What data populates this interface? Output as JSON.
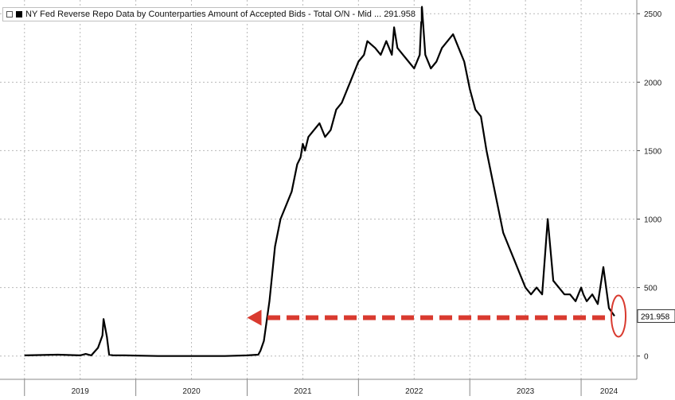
{
  "legend": {
    "label": "NY Fed Reverse Repo Data by Counterparties Amount of Accepted Bids - Total O/N - Mid ... 291.958"
  },
  "last_value_tag": "291.958",
  "colors": {
    "line": "#000000",
    "grid": "#b9b9b9",
    "annotation": "#d93a2f",
    "tag_bg": "#ffffff"
  },
  "chart_data": {
    "type": "line",
    "title": "",
    "xlabel": "",
    "ylabel": "",
    "ylim": [
      -170,
      2600
    ],
    "y_ticks": [
      0,
      500,
      1000,
      1500,
      2000,
      2500
    ],
    "x_tick_labels": [
      "2019",
      "2020",
      "2021",
      "2022",
      "2023",
      "2024"
    ],
    "x_tick_years": [
      2019,
      2020,
      2021,
      2022,
      2023,
      2024
    ],
    "series": [
      {
        "name": "",
        "x": [
          2019.0,
          2019.3,
          2019.5,
          2019.55,
          2019.6,
          2019.66,
          2019.7,
          2019.71,
          2019.74,
          2019.76,
          2019.8,
          2019.9,
          2020.2,
          2020.5,
          2020.8,
          2021.0,
          2021.1,
          2021.12,
          2021.15,
          2021.2,
          2021.25,
          2021.3,
          2021.35,
          2021.4,
          2021.45,
          2021.48,
          2021.5,
          2021.52,
          2021.55,
          2021.6,
          2021.65,
          2021.7,
          2021.75,
          2021.8,
          2021.85,
          2021.9,
          2021.95,
          2022.0,
          2022.05,
          2022.08,
          2022.15,
          2022.2,
          2022.25,
          2022.3,
          2022.32,
          2022.35,
          2022.4,
          2022.45,
          2022.5,
          2022.55,
          2022.57,
          2022.6,
          2022.65,
          2022.7,
          2022.75,
          2022.8,
          2022.85,
          2022.9,
          2022.95,
          2023.0,
          2023.05,
          2023.1,
          2023.15,
          2023.2,
          2023.25,
          2023.3,
          2023.35,
          2023.4,
          2023.45,
          2023.5,
          2023.55,
          2023.6,
          2023.65,
          2023.7,
          2023.75,
          2023.8,
          2023.85,
          2023.9,
          2023.95,
          2024.0,
          2024.02,
          2024.05,
          2024.1,
          2024.15,
          2024.2,
          2024.25,
          2024.3
        ],
        "y": [
          5,
          10,
          5,
          15,
          5,
          60,
          150,
          270,
          140,
          10,
          5,
          5,
          0,
          0,
          0,
          5,
          10,
          40,
          110,
          400,
          800,
          1000,
          1100,
          1200,
          1400,
          1450,
          1550,
          1500,
          1600,
          1650,
          1700,
          1600,
          1650,
          1800,
          1850,
          1950,
          2050,
          2150,
          2200,
          2300,
          2250,
          2200,
          2300,
          2200,
          2400,
          2250,
          2200,
          2150,
          2100,
          2200,
          2550,
          2200,
          2100,
          2150,
          2250,
          2300,
          2350,
          2250,
          2150,
          1950,
          1800,
          1750,
          1500,
          1300,
          1100,
          900,
          800,
          700,
          600,
          500,
          450,
          500,
          450,
          1000,
          550,
          500,
          450,
          450,
          400,
          500,
          450,
          400,
          450,
          380,
          650,
          350,
          292
        ]
      }
    ]
  }
}
